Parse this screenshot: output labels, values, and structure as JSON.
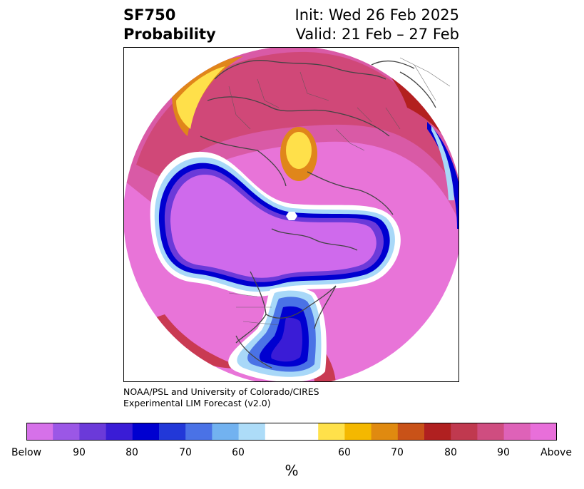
{
  "header": {
    "variable": "SF750",
    "product": "Probability",
    "init": "Init: Wed 26 Feb 2025",
    "valid": "Valid: 21 Feb – 27 Feb"
  },
  "credit": {
    "line1": "NOAA/PSL and University of Colorado/CIRES",
    "line2": "Experimental LIM Forecast (v2.0)"
  },
  "colorbar": {
    "unit": "%",
    "colors": [
      "#d671e9",
      "#9b57e6",
      "#6b3ad9",
      "#3a1cd6",
      "#0000d0",
      "#2238d8",
      "#4a72e6",
      "#72b2f0",
      "#addcf8",
      "#ffffff",
      "#ffffff",
      "#ffe14a",
      "#f4b800",
      "#e08a10",
      "#c95218",
      "#b02020",
      "#c0394f",
      "#cf4d80",
      "#de62b8",
      "#e86fda"
    ],
    "tick_labels": [
      "Below",
      "90",
      "80",
      "70",
      "60",
      "60",
      "70",
      "80",
      "90",
      "Above"
    ]
  },
  "colors": {
    "above_strong": "#e874d8",
    "above_med": "#d95aa6",
    "above_weak": "#c93a52",
    "red": "#b3201f",
    "orange": "#e0861a",
    "yellow": "#ffe04a",
    "below_strong": "#cf6aec",
    "below_med": "#6b3ad9",
    "blue": "#0000d0",
    "lightblue": "#a8d8f8"
  }
}
